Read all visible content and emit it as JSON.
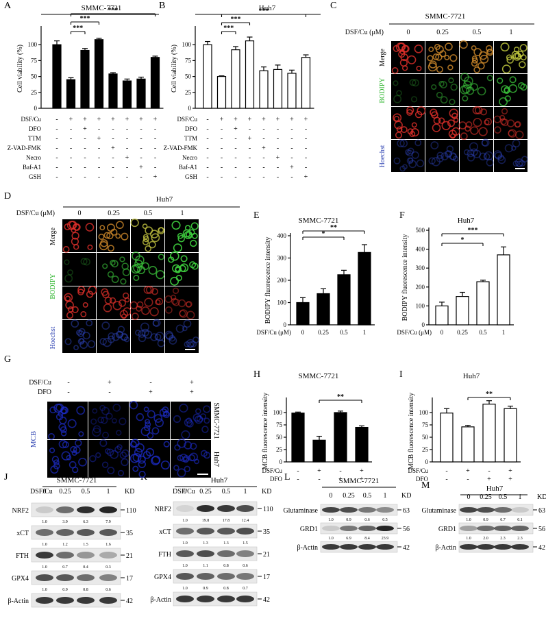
{
  "panel_letters": [
    "A",
    "B",
    "C",
    "D",
    "E",
    "F",
    "G",
    "H",
    "I",
    "J",
    "K",
    "L",
    "M"
  ],
  "row_plus": "+",
  "row_minus": "-",
  "conc_labels": [
    "0",
    "0.25",
    "0.5",
    "1"
  ],
  "sig_labels": {
    "three": "***",
    "two": "**",
    "one": "*"
  },
  "panel_A": {
    "title": "SMMC-7721",
    "ylabel": "Cell viability (%)",
    "ticks": [
      "0",
      "25",
      "50",
      "75",
      "100"
    ],
    "row_labels": [
      "DSF/Cu",
      "DFO",
      "TTM",
      "Z-VAD-FMK",
      "Necro",
      "Baf-A1",
      "GSH"
    ]
  },
  "panel_B": {
    "title": "Huh7",
    "ylabel": "Cell viability (%)",
    "ticks": [
      "0",
      "25",
      "50",
      "75",
      "100"
    ],
    "row_labels": [
      "DSF/Cu",
      "DFO",
      "TTM",
      "Z-VAD-FMK",
      "Necro",
      "Baf-A1",
      "GSH"
    ]
  },
  "panel_C": {
    "title": "SMMC-7721",
    "conc_label": "DSF/Cu (μM)",
    "row_labels": [
      "Merge",
      "BODIPY",
      "Hoechst"
    ]
  },
  "panel_D": {
    "title": "Huh7",
    "conc_label": "DSF/Cu (μM)",
    "row_labels": [
      "Merge",
      "BODIPY",
      "Hoechst"
    ]
  },
  "panel_E": {
    "title": "SMMC-7721",
    "ylabel": "BODIPY fluorescence intensity",
    "xlabel": "DSF/Cu (μM)",
    "ticks": [
      "0",
      "100",
      "200",
      "300",
      "400"
    ]
  },
  "panel_F": {
    "title": "Huh7",
    "ylabel": "BODIPY fluorescence intensity",
    "xlabel": "DSF/Cu (μM)",
    "ticks": [
      "0",
      "100",
      "200",
      "300",
      "400",
      "500"
    ]
  },
  "panel_G": {
    "row_labels": [
      "DSF/Cu",
      "DFO"
    ],
    "stain": "MCB",
    "cell_lines": [
      "SMMC-7721",
      "Huh7"
    ]
  },
  "panel_H": {
    "title": "SMMC-7721",
    "ylabel": "MCB fluorescence intensity",
    "ticks": [
      "0",
      "25",
      "50",
      "75",
      "100"
    ],
    "row_labels": [
      "DSF/Cu",
      "DFO"
    ]
  },
  "panel_I": {
    "title": "Huh7",
    "ylabel": "MCB fluorescence intensity",
    "ticks": [
      "0",
      "25",
      "50",
      "75",
      "100"
    ],
    "row_labels": [
      "DSF/Cu",
      "DFO"
    ]
  },
  "blot_J": {
    "title": "SMMC-7721",
    "conc_label": "DSF/Cu",
    "kd_label": "KD",
    "proteins": [
      {
        "name": "NRF2",
        "kd": "110",
        "quant": [
          "1.0",
          "3.9",
          "6.3",
          "7.9"
        ]
      },
      {
        "name": "xCT",
        "kd": "35",
        "quant": [
          "1.0",
          "1.2",
          "1.5",
          "1.6"
        ]
      },
      {
        "name": "FTH",
        "kd": "21",
        "quant": [
          "1.0",
          "0.7",
          "0.4",
          "0.3"
        ]
      },
      {
        "name": "GPX4",
        "kd": "17",
        "quant": [
          "1.0",
          "0.9",
          "0.8",
          "0.6"
        ]
      },
      {
        "name": "β-Actin",
        "kd": "42",
        "quant": []
      }
    ]
  },
  "blot_K": {
    "title": "Huh7",
    "conc_label": "DSF/Cu",
    "kd_label": "KD",
    "proteins": [
      {
        "name": "NRF2",
        "kd": "110",
        "quant": [
          "1.0",
          "19.8",
          "17.8",
          "12.4"
        ]
      },
      {
        "name": "xCT",
        "kd": "35",
        "quant": [
          "1.0",
          "1.3",
          "1.3",
          "1.5"
        ]
      },
      {
        "name": "FTH",
        "kd": "21",
        "quant": [
          "1.0",
          "1.1",
          "0.8",
          "0.6"
        ]
      },
      {
        "name": "GPX4",
        "kd": "17",
        "quant": [
          "1.0",
          "0.9",
          "0.8",
          "0.7"
        ]
      },
      {
        "name": "β-Actin",
        "kd": "42",
        "quant": []
      }
    ]
  },
  "blot_L": {
    "title": "SMMC-7721",
    "kd_label": "KD",
    "proteins": [
      {
        "name": "Glutaminase",
        "kd": "63",
        "quant": [
          "1.0",
          "0.9",
          "0.6",
          "0.5"
        ]
      },
      {
        "name": "GRD1",
        "kd": "56",
        "quant": [
          "1.0",
          "6.9",
          "8.4",
          "23.9"
        ]
      },
      {
        "name": "β-Actin",
        "kd": "42",
        "quant": []
      }
    ]
  },
  "blot_M": {
    "title": "Huh7",
    "kd_label": "KD",
    "proteins": [
      {
        "name": "Glutaminase",
        "kd": "63",
        "quant": [
          "1.0",
          "0.9",
          "0.7",
          "0.1"
        ]
      },
      {
        "name": "GRD1",
        "kd": "56",
        "quant": [
          "1.0",
          "2.0",
          "2.3",
          "2.3"
        ]
      },
      {
        "name": "β-Actin",
        "kd": "42",
        "quant": []
      }
    ]
  },
  "chart_data": [
    {
      "type": "bar",
      "panel": "A",
      "title": "SMMC-7721",
      "ylabel": "Cell viability (%)",
      "ylim": [
        0,
        125
      ],
      "categories": [
        "control",
        "DSF/Cu",
        "DSF/Cu+DFO",
        "DSF/Cu+TTM",
        "DSF/Cu+Z-VAD-FMK",
        "DSF/Cu+Necro",
        "DSF/Cu+Baf-A1",
        "DSF/Cu+GSH"
      ],
      "values": [
        100,
        45,
        91,
        108,
        54,
        43,
        46,
        80
      ],
      "errors": [
        6,
        3,
        3,
        2,
        2,
        3,
        3,
        2
      ],
      "treatments": {
        "DSF/Cu": [
          "-",
          "+",
          "+",
          "+",
          "+",
          "+",
          "+",
          "+"
        ],
        "DFO": [
          "-",
          "-",
          "+",
          "-",
          "-",
          "-",
          "-",
          "-"
        ],
        "TTM": [
          "-",
          "-",
          "-",
          "+",
          "-",
          "-",
          "-",
          "-"
        ],
        "Z-VAD-FMK": [
          "-",
          "-",
          "-",
          "-",
          "+",
          "-",
          "-",
          "-"
        ],
        "Necro": [
          "-",
          "-",
          "-",
          "-",
          "-",
          "+",
          "-",
          "-"
        ],
        "Baf-A1": [
          "-",
          "-",
          "-",
          "-",
          "-",
          "-",
          "+",
          "-"
        ],
        "GSH": [
          "-",
          "-",
          "-",
          "-",
          "-",
          "-",
          "-",
          "+"
        ]
      },
      "sig": [
        {
          "from": 1,
          "to": 2,
          "label": "***"
        },
        {
          "from": 1,
          "to": 3,
          "label": "***"
        },
        {
          "from": 1,
          "to": 7,
          "label": "***"
        }
      ],
      "fill": "black"
    },
    {
      "type": "bar",
      "panel": "B",
      "title": "Huh7",
      "ylabel": "Cell viability (%)",
      "ylim": [
        0,
        125
      ],
      "categories": [
        "control",
        "DSF/Cu",
        "DSF/Cu+DFO",
        "DSF/Cu+TTM",
        "DSF/Cu+Z-VAD-FMK",
        "DSF/Cu+Necro",
        "DSF/Cu+Baf-A1",
        "DSF/Cu+GSH"
      ],
      "values": [
        100,
        50,
        92,
        106,
        59,
        61,
        55,
        80
      ],
      "errors": [
        5,
        1,
        5,
        6,
        6,
        7,
        5,
        4
      ],
      "treatments": {
        "DSF/Cu": [
          "-",
          "+",
          "+",
          "+",
          "+",
          "+",
          "+",
          "+"
        ],
        "DFO": [
          "-",
          "-",
          "+",
          "-",
          "-",
          "-",
          "-",
          "-"
        ],
        "TTM": [
          "-",
          "-",
          "-",
          "+",
          "-",
          "-",
          "-",
          "-"
        ],
        "Z-VAD-FMK": [
          "-",
          "-",
          "-",
          "-",
          "+",
          "-",
          "-",
          "-"
        ],
        "Necro": [
          "-",
          "-",
          "-",
          "-",
          "-",
          "+",
          "-",
          "-"
        ],
        "Baf-A1": [
          "-",
          "-",
          "-",
          "-",
          "-",
          "-",
          "+",
          "-"
        ],
        "GSH": [
          "-",
          "-",
          "-",
          "-",
          "-",
          "-",
          "-",
          "+"
        ]
      },
      "sig": [
        {
          "from": 1,
          "to": 2,
          "label": "***"
        },
        {
          "from": 1,
          "to": 3,
          "label": "***"
        },
        {
          "from": 1,
          "to": 7,
          "label": "***"
        }
      ],
      "fill": "white"
    },
    {
      "type": "bar",
      "panel": "E",
      "title": "SMMC-7721",
      "ylabel": "BODIPY fluorescence intensity",
      "xlabel": "DSF/Cu (μM)",
      "ylim": [
        0,
        400
      ],
      "categories": [
        "0",
        "0.25",
        "0.5",
        "1"
      ],
      "values": [
        100,
        140,
        225,
        325
      ],
      "errors": [
        22,
        22,
        20,
        35
      ],
      "sig": [
        {
          "from": 0,
          "to": 2,
          "label": "*"
        },
        {
          "from": 0,
          "to": 3,
          "label": "**"
        }
      ],
      "fill": "black"
    },
    {
      "type": "bar",
      "panel": "F",
      "title": "Huh7",
      "ylabel": "BODIPY fluorescence intensity",
      "xlabel": "DSF/Cu (μM)",
      "ylim": [
        0,
        500
      ],
      "categories": [
        "0",
        "0.25",
        "0.5",
        "1"
      ],
      "values": [
        100,
        150,
        228,
        370
      ],
      "errors": [
        20,
        22,
        8,
        42
      ],
      "sig": [
        {
          "from": 0,
          "to": 2,
          "label": "*"
        },
        {
          "from": 0,
          "to": 3,
          "label": "***"
        }
      ],
      "fill": "white"
    },
    {
      "type": "bar",
      "panel": "H",
      "title": "SMMC-7721",
      "ylabel": "MCB fluorescence intensity",
      "ylim": [
        0,
        125
      ],
      "categories": [
        "control",
        "DSF/Cu",
        "DFO",
        "DSF/Cu+DFO"
      ],
      "values": [
        99,
        44,
        100,
        70
      ],
      "errors": [
        2,
        8,
        3,
        3
      ],
      "treatments": {
        "DSF/Cu": [
          "-",
          "+",
          "-",
          "+"
        ],
        "DFO": [
          "-",
          "-",
          "+",
          "+"
        ]
      },
      "sig": [
        {
          "from": 1,
          "to": 3,
          "label": "**"
        }
      ],
      "fill": "black"
    },
    {
      "type": "bar",
      "panel": "I",
      "title": "Huh7",
      "ylabel": "MCB fluorescence intensity",
      "ylim": [
        0,
        125
      ],
      "categories": [
        "control",
        "DSF/Cu",
        "DFO",
        "DSF/Cu+DFO"
      ],
      "values": [
        99,
        71,
        117,
        108
      ],
      "errors": [
        9,
        3,
        7,
        5
      ],
      "treatments": {
        "DSF/Cu": [
          "-",
          "+",
          "-",
          "+"
        ],
        "DFO": [
          "-",
          "-",
          "+",
          "+"
        ]
      },
      "sig": [
        {
          "from": 1,
          "to": 3,
          "label": "**"
        }
      ],
      "fill": "white"
    }
  ]
}
